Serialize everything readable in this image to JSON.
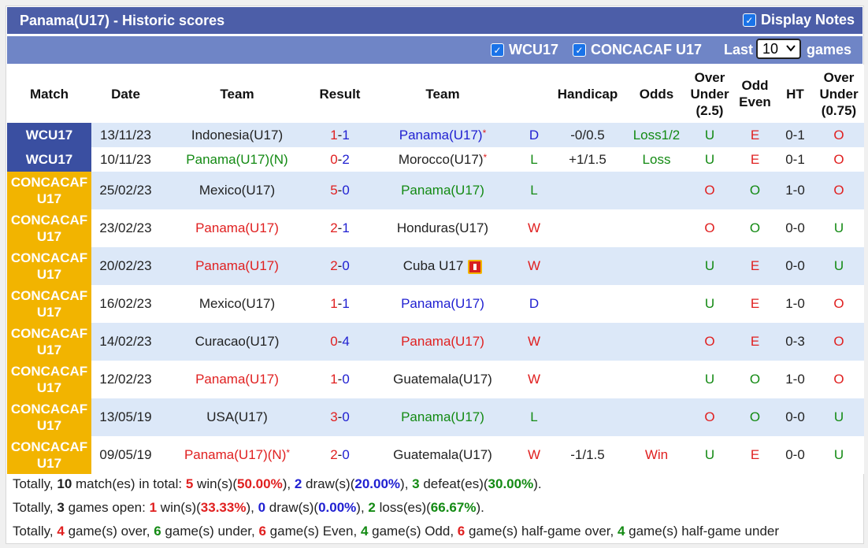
{
  "header": {
    "title": "Panama(U17) - Historic scores",
    "display_notes_label": "Display Notes",
    "display_notes_checked": true
  },
  "filters": {
    "wcu17_label": "WCU17",
    "wcu17_checked": true,
    "concacaf_label": "CONCACAF U17",
    "concacaf_checked": true,
    "last_label": "Last",
    "games_count": "10",
    "games_label": "games"
  },
  "columns": [
    "Match",
    "Date",
    "Team",
    "Result",
    "Team",
    "",
    "Handicap",
    "Odds",
    "Over Under (2.5)",
    "Odd Even",
    "HT",
    "Over Under (0.75)"
  ],
  "rows": [
    {
      "comp": "WCU17",
      "comp_type": "wc",
      "date": "13/11/23",
      "home": "Indonesia(U17)",
      "home_color": "dark",
      "home_star": "",
      "hs": "1",
      "as": "1",
      "away": "Panama(U17)",
      "away_color": "blue",
      "away_star": "*",
      "wl": "D",
      "wl_color": "blue",
      "handicap": "-0/0.5",
      "odds": "Loss1/2",
      "odds_color": "green",
      "ou": "U",
      "ou_color": "green",
      "oe": "E",
      "oe_color": "red",
      "ht": "0-1",
      "ou2": "O",
      "ou2_color": "red"
    },
    {
      "comp": "WCU17",
      "comp_type": "wc",
      "date": "10/11/23",
      "home": "Panama(U17)(N)",
      "home_color": "green",
      "home_star": "",
      "hs": "0",
      "as": "2",
      "away": "Morocco(U17)",
      "away_color": "dark",
      "away_star": "*",
      "wl": "L",
      "wl_color": "green",
      "handicap": "+1/1.5",
      "odds": "Loss",
      "odds_color": "green",
      "ou": "U",
      "ou_color": "green",
      "oe": "E",
      "oe_color": "red",
      "ht": "0-1",
      "ou2": "O",
      "ou2_color": "red"
    },
    {
      "comp": "CONCACAF U17",
      "comp_type": "cc",
      "date": "25/02/23",
      "home": "Mexico(U17)",
      "home_color": "dark",
      "home_star": "",
      "hs": "5",
      "as": "0",
      "away": "Panama(U17)",
      "away_color": "green",
      "away_star": "",
      "wl": "L",
      "wl_color": "green",
      "handicap": "",
      "odds": "",
      "odds_color": "dark",
      "ou": "O",
      "ou_color": "red",
      "oe": "O",
      "oe_color": "green",
      "ht": "1-0",
      "ou2": "O",
      "ou2_color": "red"
    },
    {
      "comp": "CONCACAF U17",
      "comp_type": "cc",
      "date": "23/02/23",
      "home": "Panama(U17)",
      "home_color": "red",
      "home_star": "",
      "hs": "2",
      "as": "1",
      "away": "Honduras(U17)",
      "away_color": "dark",
      "away_star": "",
      "wl": "W",
      "wl_color": "red",
      "handicap": "",
      "odds": "",
      "odds_color": "dark",
      "ou": "O",
      "ou_color": "red",
      "oe": "O",
      "oe_color": "green",
      "ht": "0-0",
      "ou2": "U",
      "ou2_color": "green"
    },
    {
      "comp": "CONCACAF U17",
      "comp_type": "cc",
      "date": "20/02/23",
      "home": "Panama(U17)",
      "home_color": "red",
      "home_star": "",
      "hs": "2",
      "as": "0",
      "away": "Cuba U17",
      "away_color": "dark",
      "away_star": "",
      "away_card": true,
      "wl": "W",
      "wl_color": "red",
      "handicap": "",
      "odds": "",
      "odds_color": "dark",
      "ou": "U",
      "ou_color": "green",
      "oe": "E",
      "oe_color": "red",
      "ht": "0-0",
      "ou2": "U",
      "ou2_color": "green"
    },
    {
      "comp": "CONCACAF U17",
      "comp_type": "cc",
      "date": "16/02/23",
      "home": "Mexico(U17)",
      "home_color": "dark",
      "home_star": "",
      "hs": "1",
      "as": "1",
      "away": "Panama(U17)",
      "away_color": "blue",
      "away_star": "",
      "wl": "D",
      "wl_color": "blue",
      "handicap": "",
      "odds": "",
      "odds_color": "dark",
      "ou": "U",
      "ou_color": "green",
      "oe": "E",
      "oe_color": "red",
      "ht": "1-0",
      "ou2": "O",
      "ou2_color": "red"
    },
    {
      "comp": "CONCACAF U17",
      "comp_type": "cc",
      "date": "14/02/23",
      "home": "Curacao(U17)",
      "home_color": "dark",
      "home_star": "",
      "hs": "0",
      "as": "4",
      "away": "Panama(U17)",
      "away_color": "red",
      "away_star": "",
      "wl": "W",
      "wl_color": "red",
      "handicap": "",
      "odds": "",
      "odds_color": "dark",
      "ou": "O",
      "ou_color": "red",
      "oe": "E",
      "oe_color": "red",
      "ht": "0-3",
      "ou2": "O",
      "ou2_color": "red"
    },
    {
      "comp": "CONCACAF U17",
      "comp_type": "cc",
      "date": "12/02/23",
      "home": "Panama(U17)",
      "home_color": "red",
      "home_star": "",
      "hs": "1",
      "as": "0",
      "away": "Guatemala(U17)",
      "away_color": "dark",
      "away_star": "",
      "wl": "W",
      "wl_color": "red",
      "handicap": "",
      "odds": "",
      "odds_color": "dark",
      "ou": "U",
      "ou_color": "green",
      "oe": "O",
      "oe_color": "green",
      "ht": "1-0",
      "ou2": "O",
      "ou2_color": "red"
    },
    {
      "comp": "CONCACAF U17",
      "comp_type": "cc",
      "date": "13/05/19",
      "home": "USA(U17)",
      "home_color": "dark",
      "home_star": "",
      "hs": "3",
      "as": "0",
      "away": "Panama(U17)",
      "away_color": "green",
      "away_star": "",
      "wl": "L",
      "wl_color": "green",
      "handicap": "",
      "odds": "",
      "odds_color": "dark",
      "ou": "O",
      "ou_color": "red",
      "oe": "O",
      "oe_color": "green",
      "ht": "0-0",
      "ou2": "U",
      "ou2_color": "green"
    },
    {
      "comp": "CONCACAF U17",
      "comp_type": "cc",
      "date": "09/05/19",
      "home": "Panama(U17)(N)",
      "home_color": "red",
      "home_star": "*",
      "hs": "2",
      "as": "0",
      "away": "Guatemala(U17)",
      "away_color": "dark",
      "away_star": "",
      "wl": "W",
      "wl_color": "red",
      "handicap": "-1/1.5",
      "odds": "Win",
      "odds_color": "red",
      "ou": "U",
      "ou_color": "green",
      "oe": "E",
      "oe_color": "red",
      "ht": "0-0",
      "ou2": "U",
      "ou2_color": "green"
    }
  ],
  "summary": {
    "line1": [
      {
        "t": "Totally, ",
        "c": "dark",
        "b": false
      },
      {
        "t": "10",
        "c": "dark",
        "b": true
      },
      {
        "t": " match(es) in total: ",
        "c": "dark",
        "b": false
      },
      {
        "t": "5",
        "c": "red",
        "b": true
      },
      {
        "t": " win(s)(",
        "c": "dark",
        "b": false
      },
      {
        "t": "50.00%",
        "c": "red",
        "b": true
      },
      {
        "t": "), ",
        "c": "dark",
        "b": false
      },
      {
        "t": "2",
        "c": "blue",
        "b": true
      },
      {
        "t": " draw(s)(",
        "c": "dark",
        "b": false
      },
      {
        "t": "20.00%",
        "c": "blue",
        "b": true
      },
      {
        "t": "), ",
        "c": "dark",
        "b": false
      },
      {
        "t": "3",
        "c": "green",
        "b": true
      },
      {
        "t": " defeat(es)(",
        "c": "dark",
        "b": false
      },
      {
        "t": "30.00%",
        "c": "green",
        "b": true
      },
      {
        "t": ").",
        "c": "dark",
        "b": false
      }
    ],
    "line2": [
      {
        "t": "Totally, ",
        "c": "dark",
        "b": false
      },
      {
        "t": "3",
        "c": "dark",
        "b": true
      },
      {
        "t": " games open: ",
        "c": "dark",
        "b": false
      },
      {
        "t": "1",
        "c": "red",
        "b": true
      },
      {
        "t": " win(s)(",
        "c": "dark",
        "b": false
      },
      {
        "t": "33.33%",
        "c": "red",
        "b": true
      },
      {
        "t": "), ",
        "c": "dark",
        "b": false
      },
      {
        "t": "0",
        "c": "blue",
        "b": true
      },
      {
        "t": " draw(s)(",
        "c": "dark",
        "b": false
      },
      {
        "t": "0.00%",
        "c": "blue",
        "b": true
      },
      {
        "t": "), ",
        "c": "dark",
        "b": false
      },
      {
        "t": "2",
        "c": "green",
        "b": true
      },
      {
        "t": " loss(es)(",
        "c": "dark",
        "b": false
      },
      {
        "t": "66.67%",
        "c": "green",
        "b": true
      },
      {
        "t": ").",
        "c": "dark",
        "b": false
      }
    ],
    "line3": [
      {
        "t": "Totally, ",
        "c": "dark",
        "b": false
      },
      {
        "t": "4",
        "c": "red",
        "b": true
      },
      {
        "t": " game(s) over, ",
        "c": "dark",
        "b": false
      },
      {
        "t": "6",
        "c": "green",
        "b": true
      },
      {
        "t": " game(s) under, ",
        "c": "dark",
        "b": false
      },
      {
        "t": "6",
        "c": "red",
        "b": true
      },
      {
        "t": " game(s) Even, ",
        "c": "dark",
        "b": false
      },
      {
        "t": "4",
        "c": "green",
        "b": true
      },
      {
        "t": " game(s) Odd, ",
        "c": "dark",
        "b": false
      },
      {
        "t": "6",
        "c": "red",
        "b": true
      },
      {
        "t": " game(s) half-game over, ",
        "c": "dark",
        "b": false
      },
      {
        "t": "4",
        "c": "green",
        "b": true
      },
      {
        "t": " game(s) half-game under",
        "c": "dark",
        "b": false
      }
    ]
  },
  "colors": {
    "title_bg": "#4c5ea8",
    "filter_bg": "#6f85c6",
    "row_alt": "#dce8f8",
    "wc_badge": "#3a4fa1",
    "concacaf_badge": "#f2b400",
    "red": "#e02020",
    "green": "#138a13",
    "blue": "#1f1fd1"
  }
}
